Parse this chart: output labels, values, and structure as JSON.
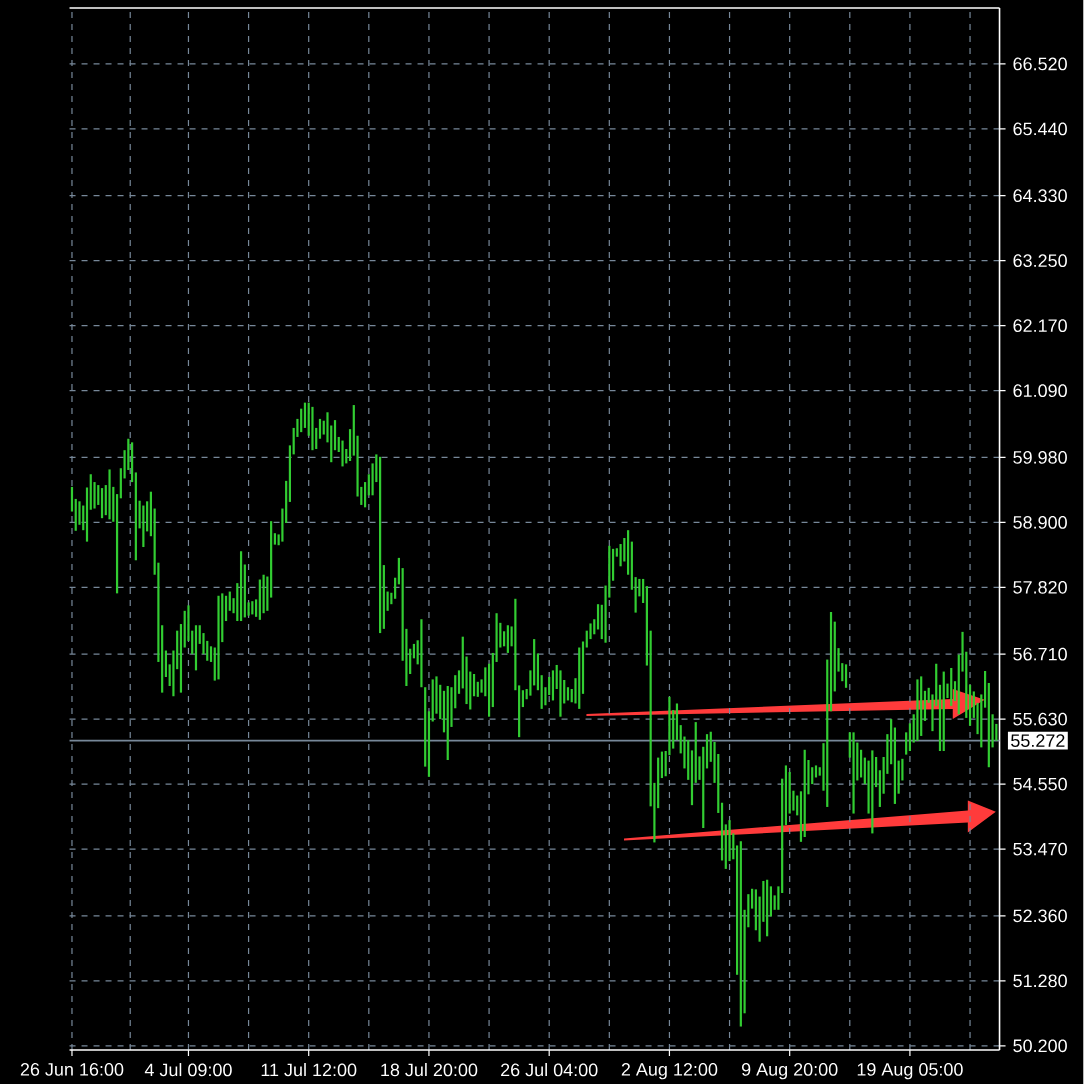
{
  "chart_data": {
    "type": "bar",
    "categories": [
      "26 Jun 16:00",
      null,
      null,
      null,
      null,
      null,
      null,
      null,
      null,
      null,
      null,
      null,
      null,
      null,
      null,
      null,
      null,
      null,
      null,
      null,
      null,
      null,
      null,
      null,
      null,
      null,
      null,
      null,
      null,
      null,
      null,
      "4 Jul 09:00",
      null,
      null,
      null,
      null,
      null,
      null,
      null,
      null,
      null,
      null,
      null,
      null,
      null,
      null,
      null,
      null,
      null,
      null,
      null,
      null,
      null,
      null,
      null,
      null,
      null,
      null,
      null,
      null,
      null,
      null,
      null,
      "11 Jul 12:00",
      null,
      null,
      null,
      null,
      null,
      null,
      null,
      null,
      null,
      null,
      null,
      null,
      null,
      null,
      null,
      null,
      null,
      null,
      null,
      null,
      null,
      null,
      null,
      null,
      null,
      null,
      null,
      null,
      null,
      null,
      null,
      "18 Jul 20:00",
      null,
      null,
      null,
      null,
      null,
      null,
      null,
      null,
      null,
      null,
      null,
      null,
      null,
      null,
      null,
      null,
      null,
      null,
      null,
      null,
      null,
      null,
      null,
      null,
      null,
      null,
      null,
      null,
      null,
      null,
      null,
      "26 Jul 04:00",
      null,
      null,
      null,
      null,
      null,
      null,
      null,
      null,
      null,
      null,
      null,
      null,
      null,
      null,
      null,
      null,
      null,
      null,
      null,
      null,
      null,
      null,
      null,
      null,
      null,
      null,
      null,
      null,
      null,
      null,
      null,
      "2 Aug 12:00",
      null,
      null,
      null,
      null,
      null,
      null,
      null,
      null,
      null,
      null,
      null,
      null,
      null,
      null,
      null,
      null,
      null,
      null,
      null,
      null,
      null,
      null,
      null,
      null,
      null,
      null,
      null,
      null,
      null,
      null,
      null,
      "9 Aug 20:00",
      null,
      null,
      null,
      null,
      null,
      null,
      null,
      null,
      null,
      null,
      null,
      null,
      null,
      null,
      null,
      null,
      null,
      null,
      null,
      null,
      null,
      null,
      null,
      null,
      null,
      null,
      null,
      null,
      null,
      null,
      null,
      "19 Aug 05:00",
      null,
      null,
      null,
      null,
      null,
      null,
      null,
      null,
      null,
      null,
      null,
      null,
      null,
      null,
      null,
      null,
      null,
      null,
      null,
      null,
      null,
      null,
      null
    ],
    "base": [
      59.08,
      58.76,
      58.86,
      58.77,
      58.58,
      59.11,
      59.13,
      59.19,
      58.97,
      59.02,
      58.95,
      58.91,
      57.72,
      59.3,
      59.63,
      59.77,
      59.57,
      58.27,
      58.8,
      58.49,
      58.75,
      58.67,
      58.03,
      56.58,
      56.07,
      56.33,
      56.18,
      56.01,
      56.46,
      56.07,
      56.82,
      56.93,
      56.71,
      56.44,
      56.88,
      56.71,
      56.6,
      56.58,
      56.27,
      56.29,
      56.91,
      57.26,
      57.43,
      57.39,
      57.26,
      57.26,
      57.32,
      57.35,
      57.37,
      57.33,
      57.28,
      57.39,
      57.43,
      57.65,
      58.53,
      58.52,
      58.58,
      58.89,
      59.24,
      60.03,
      60.32,
      60.4,
      60.47,
      60.34,
      60.1,
      60.12,
      60.29,
      60.36,
      60.23,
      59.9,
      60.1,
      60.07,
      59.83,
      59.88,
      59.92,
      60.01,
      59.33,
      59.19,
      59.15,
      59.35,
      59.35,
      59.57,
      57.06,
      57.13,
      57.43,
      57.54,
      57.63,
      57.87,
      56.6,
      56.18,
      56.38,
      56.64,
      56.54,
      56.16,
      54.84,
      54.67,
      55.59,
      55.72,
      55.63,
      55.41,
      54.95,
      55.5,
      55.81,
      56.05,
      56.14,
      55.88,
      55.79,
      56.01,
      56.0,
      56.07,
      56.01,
      55.67,
      55.83,
      56.58,
      56.82,
      56.84,
      56.73,
      56.84,
      56.11,
      55.33,
      55.83,
      55.96,
      56.02,
      56.19,
      56.11,
      55.8,
      55.86,
      56.03,
      55.94,
      56.13,
      55.67,
      55.89,
      55.94,
      55.91,
      55.89,
      55.8,
      56.05,
      56.82,
      56.96,
      57.04,
      57.12,
      56.96,
      56.9,
      57.65,
      57.93,
      58.33,
      58.17,
      58.25,
      58.03,
      57.78,
      57.4,
      57.67,
      57.56,
      56.52,
      54.18,
      53.58,
      54.15,
      54.65,
      54.68,
      55.03,
      55.14,
      55.28,
      55.06,
      54.81,
      54.62,
      54.2,
      54.57,
      54.62,
      53.82,
      54.81,
      54.92,
      54.57,
      54.07,
      53.28,
      53.14,
      53.27,
      53.3,
      51.38,
      50.52,
      50.74,
      52.17,
      52.48,
      52.12,
      51.93,
      52.26,
      52.02,
      52.35,
      52.46,
      52.46,
      52.74,
      53.87,
      54.06,
      54.11,
      54.03,
      53.59,
      53.67,
      54.38,
      54.55,
      54.66,
      54.69,
      54.44,
      54.17,
      55.76,
      56.09,
      56.42,
      56.26,
      56.15,
      54.99,
      54.06,
      54.61,
      54.66,
      54.55,
      54.06,
      53.73,
      54.5,
      54.17,
      54.39,
      54.72,
      54.88,
      54.22,
      54.39,
      54.61,
      55.04,
      55.1,
      55.24,
      55.27,
      55.35,
      55.6,
      55.9,
      55.43,
      55.85,
      55.1,
      55.1,
      55.98,
      55.85,
      55.93,
      55.71,
      56.42,
      55.65,
      55.52,
      55.65,
      55.38,
      55.16,
      55.82,
      54.83,
      55.16,
      55.27
    ],
    "values": [
      0.41,
      0.53,
      0.39,
      0.41,
      0.9,
      0.59,
      0.44,
      0.33,
      0.5,
      0.5,
      0.83,
      0.58,
      1.65,
      0.5,
      0.47,
      0.52,
      0.66,
      1.46,
      0.46,
      0.69,
      0.5,
      0.74,
      1.1,
      1.65,
      1.12,
      0.44,
      0.36,
      0.76,
      0.64,
      1.14,
      0.61,
      0.59,
      0.39,
      0.75,
      0.31,
      0.35,
      0.33,
      0.26,
      0.55,
      1.39,
      0.81,
      0.42,
      0.32,
      0.25,
      0.63,
      1.16,
      0.88,
      0.22,
      0.22,
      0.29,
      0.67,
      0.64,
      0.57,
      1.27,
      0.19,
      0.18,
      0.55,
      0.7,
      0.94,
      0.44,
      0.3,
      0.39,
      0.42,
      0.55,
      0.72,
      0.35,
      0.33,
      0.23,
      0.5,
      0.61,
      0.5,
      0.25,
      0.43,
      0.24,
      0.53,
      0.84,
      1.01,
      0.3,
      0.42,
      0.35,
      0.53,
      0.46,
      2.93,
      1.06,
      0.32,
      0.19,
      0.35,
      0.44,
      1.54,
      0.95,
      0.42,
      0.24,
      0.4,
      1.13,
      1.32,
      1.09,
      0.7,
      0.62,
      0.57,
      0.69,
      1.23,
      0.66,
      0.55,
      0.39,
      0.86,
      0.79,
      0.63,
      0.37,
      0.25,
      0.22,
      0.48,
      0.88,
      0.9,
      0.81,
      0.41,
      0.25,
      0.46,
      0.33,
      1.52,
      0.86,
      0.28,
      0.17,
      0.42,
      0.77,
      0.61,
      0.56,
      0.3,
      0.3,
      0.5,
      0.4,
      0.77,
      0.39,
      0.22,
      0.22,
      0.42,
      1.02,
      0.87,
      0.28,
      0.26,
      0.25,
      0.42,
      0.57,
      0.95,
      0.86,
      0.53,
      0.14,
      0.37,
      0.39,
      0.74,
      0.8,
      0.59,
      0.29,
      0.4,
      1.32,
      2.92,
      0.99,
      0.84,
      0.44,
      0.42,
      0.97,
      0.64,
      0.61,
      0.47,
      0.53,
      0.66,
      0.91,
      1.01,
      0.39,
      1.35,
      0.57,
      0.5,
      0.68,
      0.98,
      0.96,
      0.74,
      0.68,
      0.43,
      2.15,
      3.08,
      1.72,
      0.55,
      0.33,
      0.68,
      0.75,
      0.68,
      0.94,
      0.5,
      0.24,
      0.39,
      1.9,
      0.99,
      0.69,
      0.33,
      0.33,
      0.84,
      1.45,
      0.57,
      0.28,
      0.2,
      0.14,
      0.79,
      2.45,
      1.65,
      1.16,
      0.39,
      0.3,
      0.39,
      0.42,
      1.35,
      0.63,
      0.46,
      0.44,
      0.88,
      1.38,
      0.5,
      0.61,
      0.61,
      0.66,
      0.75,
      1.27,
      0.55,
      0.36,
      0.37,
      0.46,
      0.47,
      1.02,
      0.99,
      0.5,
      0.25,
      0.61,
      0.7,
      1.1,
      1.32,
      0.24,
      0.63,
      0.33,
      0.99,
      0.66,
      1.1,
      0.68,
      0.44,
      0.52,
      0.88,
      0.61,
      1.4,
      0.55,
      0.28
    ],
    "color": "#32cd32",
    "ylim": [
      50.13,
      67.45
    ],
    "yticks": [
      {
        "value": 50.2,
        "label": "50.200"
      },
      {
        "value": 51.28,
        "label": "51.280"
      },
      {
        "value": 52.36,
        "label": "52.360"
      },
      {
        "value": 53.47,
        "label": "53.470"
      },
      {
        "value": 54.55,
        "label": "54.550"
      },
      {
        "value": 55.63,
        "label": "55.630"
      },
      {
        "value": 56.71,
        "label": "56.710"
      },
      {
        "value": 57.82,
        "label": "57.820"
      },
      {
        "value": 58.9,
        "label": "58.900"
      },
      {
        "value": 59.98,
        "label": "59.980"
      },
      {
        "value": 61.09,
        "label": "61.090"
      },
      {
        "value": 62.17,
        "label": "62.170"
      },
      {
        "value": 63.25,
        "label": "63.250"
      },
      {
        "value": 64.33,
        "label": "64.330"
      },
      {
        "value": 65.44,
        "label": "65.440"
      },
      {
        "value": 66.52,
        "label": "66.520"
      }
    ],
    "grid": true,
    "ref_lines": [
      {
        "axis": "y",
        "value": 55.272,
        "label": "55.272",
        "color": "#778899"
      }
    ]
  }
}
